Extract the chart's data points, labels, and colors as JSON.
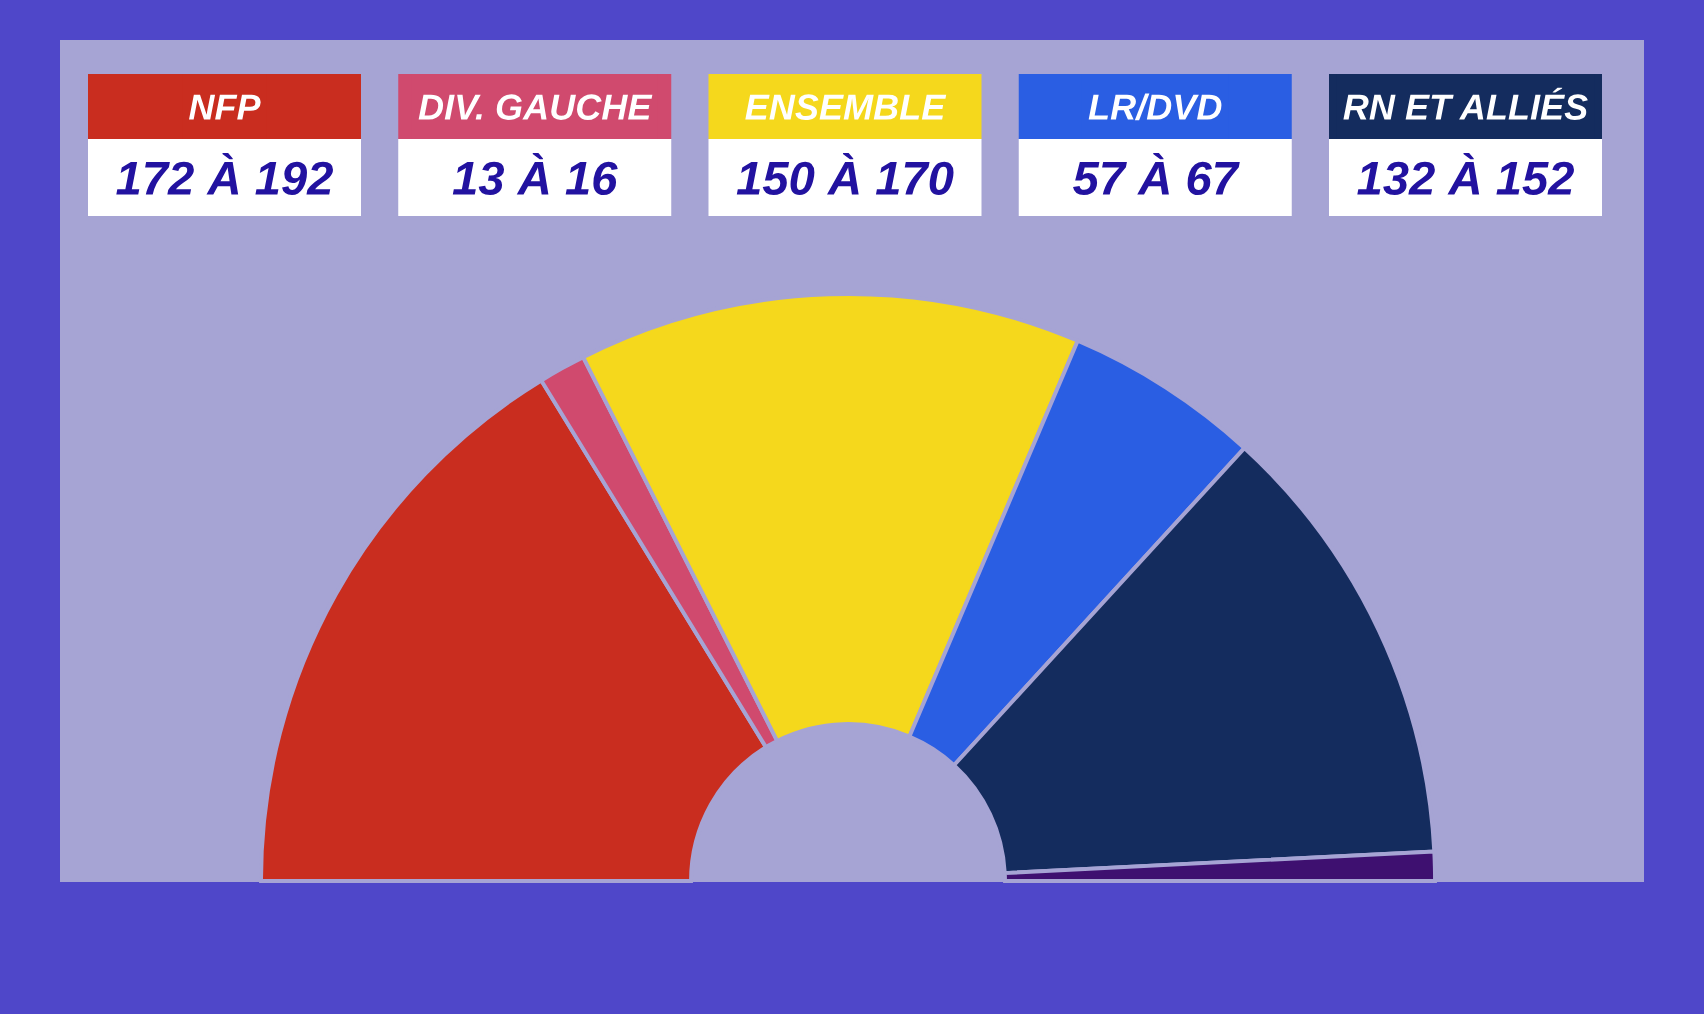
{
  "chart_data": {
    "type": "donut",
    "categories": [
      "NFP",
      "DIV. GAUCHE",
      "ENSEMBLE",
      "LR/DVD",
      "RN ET ALLIÉS",
      null
    ],
    "values": [
      32.5,
      2.6,
      27.7,
      10.8,
      24.8,
      1.6
    ],
    "colors": [
      "#c92d1f",
      "#d04a6e",
      "#f5d81c",
      "#2a5ee3",
      "#142c5e",
      "#3e1070"
    ],
    "annotations": [
      "172 À 192",
      "13 À 16",
      "150 À 170",
      "57 À 67",
      "132 À 152"
    ],
    "legend": "top"
  }
}
